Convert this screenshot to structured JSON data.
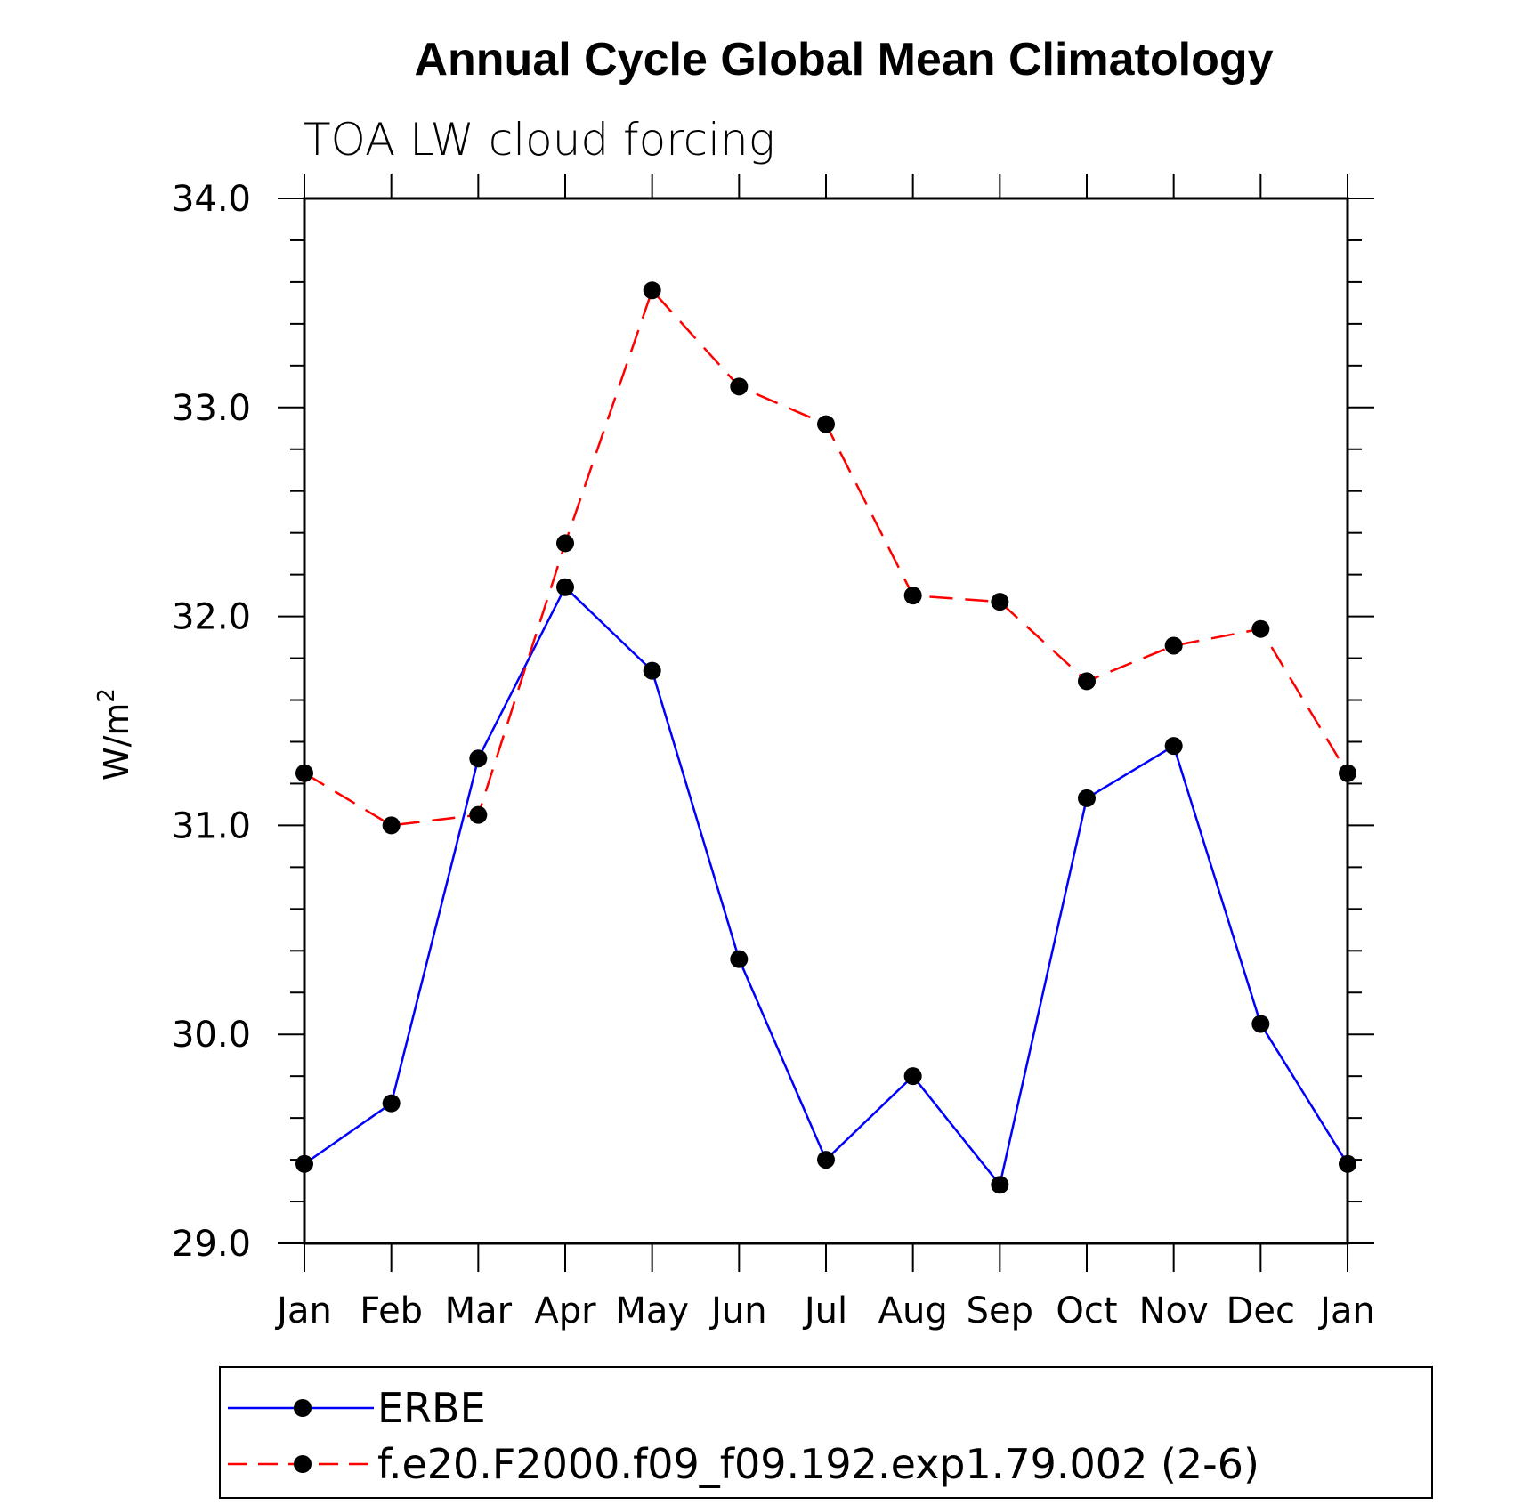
{
  "chart_data": {
    "type": "line",
    "title": "Annual Cycle Global Mean Climatology",
    "subtitle": "TOA LW cloud forcing",
    "ylabel_base": "W/m",
    "ylabel_sup": "2",
    "xlabel": "",
    "categories": [
      "Jan",
      "Feb",
      "Mar",
      "Apr",
      "May",
      "Jun",
      "Jul",
      "Aug",
      "Sep",
      "Oct",
      "Nov",
      "Dec",
      "Jan"
    ],
    "ylim": [
      29.0,
      34.0
    ],
    "yticks": [
      "29.0",
      "30.0",
      "31.0",
      "32.0",
      "33.0",
      "34.0"
    ],
    "series": [
      {
        "name": "ERBE",
        "color": "#0000ff",
        "dash": "solid",
        "values": [
          29.38,
          29.67,
          31.32,
          32.14,
          31.74,
          30.36,
          29.4,
          29.8,
          29.28,
          31.13,
          31.38,
          30.05,
          29.38
        ]
      },
      {
        "name": "f.e20.F2000.f09_f09.192.exp1.79.002 (2-6)",
        "color": "#ff0000",
        "dash": "dashed",
        "values": [
          31.25,
          31.0,
          31.05,
          32.35,
          33.56,
          33.1,
          32.92,
          32.1,
          32.07,
          31.69,
          31.86,
          31.94,
          31.25
        ]
      }
    ],
    "marker_color": "#000000",
    "legend_position": "bottom"
  }
}
